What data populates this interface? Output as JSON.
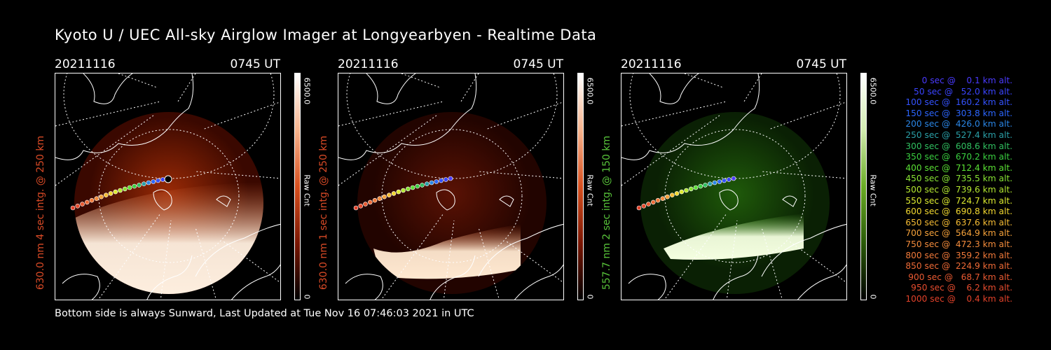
{
  "title": "Kyoto U / UEC All-sky Airglow Imager at Longyearbyen - Realtime Data",
  "footer": "Bottom side is always Sunward, Last Updated at Tue Nov 16 07:46:03 2021 in UTC",
  "panels": [
    {
      "date": "20211116",
      "time": "0745 UT",
      "side_label": "630.0 nm 4 sec intg. @ 250 km",
      "color": "#d94a26",
      "cbar_max": "6500.0",
      "cbar_unit": "Raw Cnt",
      "cbar_min": "0",
      "cbar_gradient": [
        "#ffffff",
        "#f7b38d",
        "#d7501f",
        "#7a1603",
        "#000000"
      ],
      "image_tint": [
        "#fff0e0",
        "#e07038",
        "#9a2a06",
        "#3a0800"
      ]
    },
    {
      "date": "20211116",
      "time": "0745 UT",
      "side_label": "630.0 nm 1 sec intg. @ 250 km",
      "color": "#d94a26",
      "cbar_max": "6500.0",
      "cbar_unit": "Raw Cnt",
      "cbar_min": "0",
      "cbar_gradient": [
        "#ffffff",
        "#f7b38d",
        "#d7501f",
        "#7a1603",
        "#000000"
      ],
      "image_tint": [
        "#ffe8d0",
        "#c04818",
        "#5a1204",
        "#220400"
      ]
    },
    {
      "date": "20211116",
      "time": "0745 UT",
      "side_label": "557.7 nm 2 sec intg. @ 150 km",
      "color": "#58c43a",
      "cbar_max": "6500.0",
      "cbar_unit": "Raw Cnt",
      "cbar_min": "0",
      "cbar_gradient": [
        "#ffffff",
        "#d2ecb0",
        "#6aac24",
        "#2a5a08",
        "#000000"
      ],
      "image_tint": [
        "#f4ffe0",
        "#5cb030",
        "#1f5a0a",
        "#0a2004"
      ]
    }
  ],
  "legend": [
    {
      "text": "   0 sec @    0.1 km alt.",
      "color": "#4a3aff"
    },
    {
      "text": "  50 sec @   52.0 km alt.",
      "color": "#3a44ff"
    },
    {
      "text": " 100 sec @  160.2 km alt.",
      "color": "#3452ff"
    },
    {
      "text": " 150 sec @  303.8 km alt.",
      "color": "#2c66ff"
    },
    {
      "text": " 200 sec @  426.0 km alt.",
      "color": "#2a86e6"
    },
    {
      "text": " 250 sec @  527.4 km alt.",
      "color": "#2aa0a8"
    },
    {
      "text": " 300 sec @  608.6 km alt.",
      "color": "#30c060"
    },
    {
      "text": " 350 sec @  670.2 km alt.",
      "color": "#3ad040"
    },
    {
      "text": " 400 sec @  712.4 km alt.",
      "color": "#5ae034"
    },
    {
      "text": " 450 sec @  735.5 km alt.",
      "color": "#88e434"
    },
    {
      "text": " 500 sec @  739.6 km alt.",
      "color": "#b4e830"
    },
    {
      "text": " 550 sec @  724.7 km alt.",
      "color": "#dcea30"
    },
    {
      "text": " 600 sec @  690.8 km alt.",
      "color": "#f2d830"
    },
    {
      "text": " 650 sec @  637.6 km alt.",
      "color": "#f6bc34"
    },
    {
      "text": " 700 sec @  564.9 km alt.",
      "color": "#f6a23a"
    },
    {
      "text": " 750 sec @  472.3 km alt.",
      "color": "#f48c3c"
    },
    {
      "text": " 800 sec @  359.2 km alt.",
      "color": "#f27a3a"
    },
    {
      "text": " 850 sec @  224.9 km alt.",
      "color": "#ee6a36"
    },
    {
      "text": " 900 sec @   68.7 km alt.",
      "color": "#ea5a32"
    },
    {
      "text": " 950 sec @    6.2 km alt.",
      "color": "#e64c2e"
    },
    {
      "text": "1000 sec @    0.4 km alt.",
      "color": "#e2422a"
    }
  ]
}
